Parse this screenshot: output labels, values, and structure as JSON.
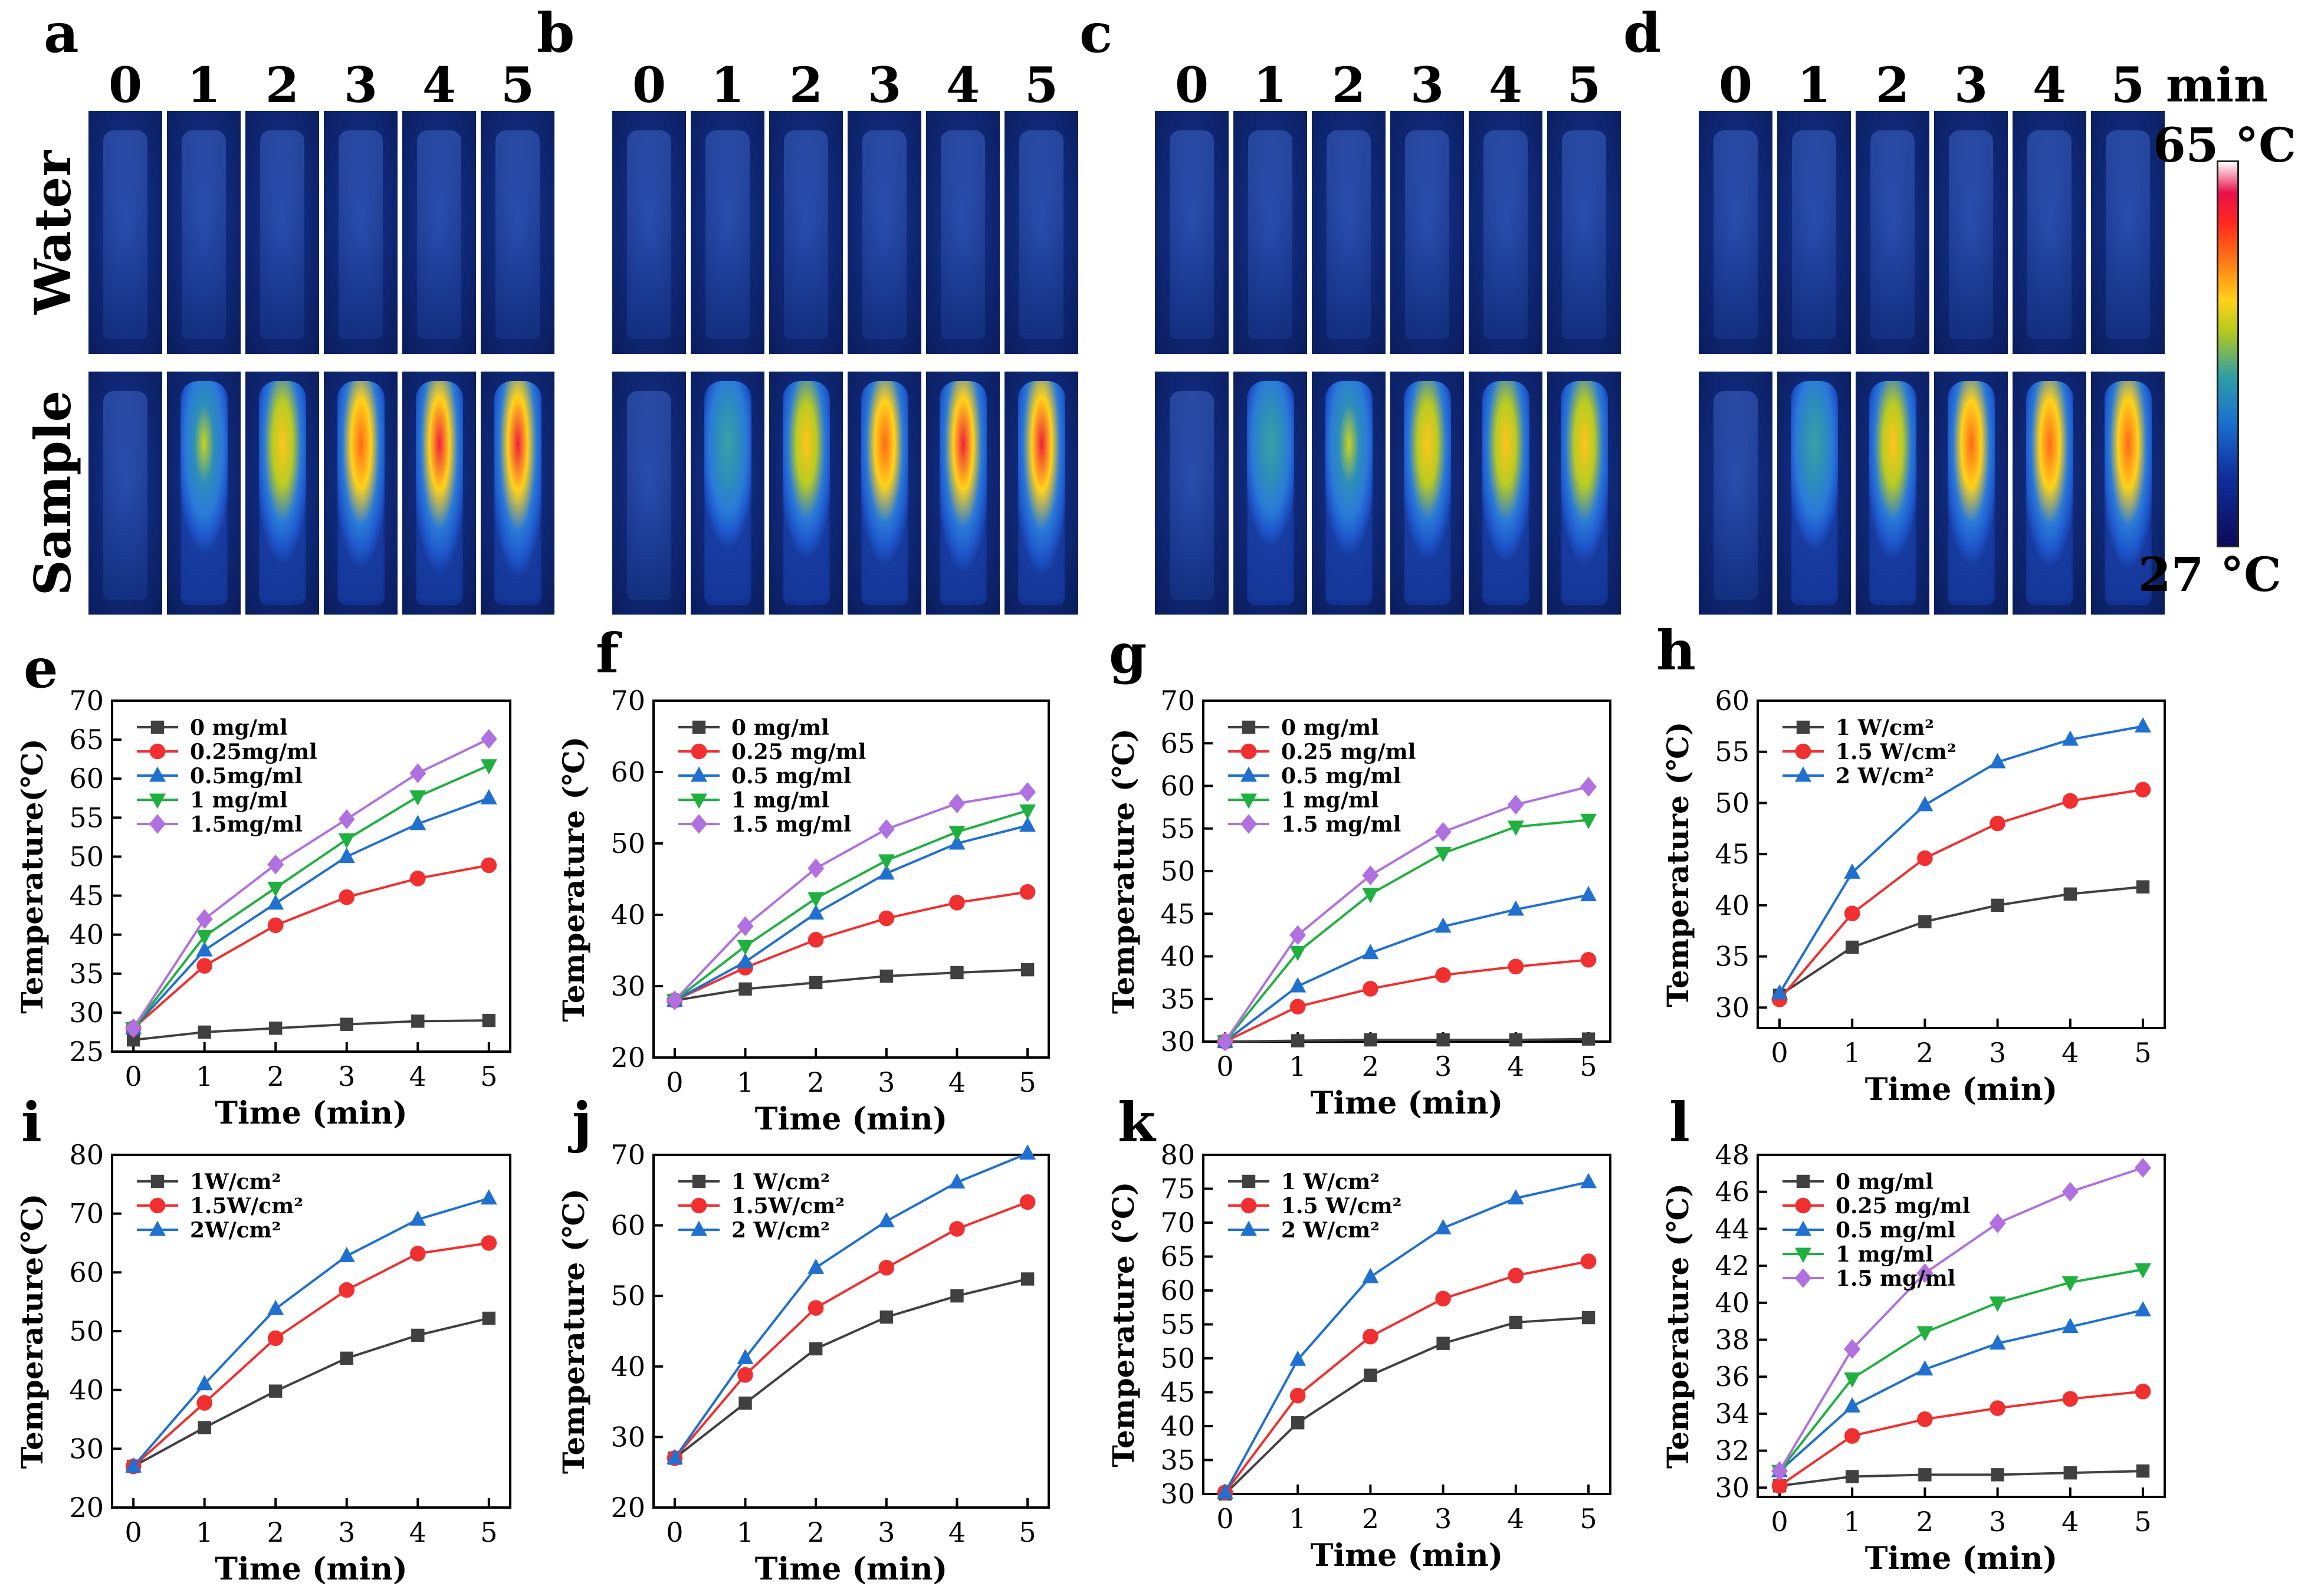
{
  "thermal": {
    "panels": [
      {
        "letter": "a",
        "times": [
          "0",
          "1",
          "2",
          "3",
          "4",
          "5"
        ],
        "sample_intensity": [
          0.0,
          0.45,
          0.68,
          0.8,
          0.92,
          1.0
        ]
      },
      {
        "letter": "b",
        "times": [
          "0",
          "1",
          "2",
          "3",
          "4",
          "5"
        ],
        "sample_intensity": [
          0.0,
          0.35,
          0.58,
          0.72,
          0.88,
          0.96
        ]
      },
      {
        "letter": "c",
        "times": [
          "0",
          "1",
          "2",
          "3",
          "4",
          "5"
        ],
        "sample_intensity": [
          0.0,
          0.3,
          0.5,
          0.6,
          0.66,
          0.7
        ]
      },
      {
        "letter": "d",
        "times": [
          "0",
          "1",
          "2",
          "3",
          "4",
          "5"
        ],
        "sample_intensity": [
          0.0,
          0.38,
          0.6,
          0.72,
          0.78,
          0.82
        ]
      }
    ],
    "row_labels": [
      "Water",
      "Sample"
    ],
    "unit": "min",
    "colorbar": {
      "max_label": "65 °C",
      "min_label": "27 °C"
    }
  },
  "chart_data": [
    {
      "id": "e",
      "type": "line",
      "xlabel": "Time (min)",
      "ylabel": "Temperature(℃)",
      "ylim": [
        25,
        70
      ],
      "yticks": [
        25,
        30,
        35,
        40,
        45,
        50,
        55,
        60,
        65,
        70
      ],
      "x": [
        0,
        1,
        2,
        3,
        4,
        5
      ],
      "series": [
        {
          "name": "0 mg/ml",
          "color": "#404040",
          "marker": "square",
          "values": [
            26.5,
            27.5,
            28.0,
            28.5,
            28.9,
            29.0
          ]
        },
        {
          "name": "0.25mg/ml",
          "color": "#f03030",
          "marker": "circle",
          "values": [
            28.0,
            36.0,
            41.2,
            44.8,
            47.2,
            48.9
          ]
        },
        {
          "name": "0.5mg/ml",
          "color": "#2070d0",
          "marker": "triangle",
          "values": [
            28.0,
            38.0,
            44.0,
            50.0,
            54.2,
            57.5
          ]
        },
        {
          "name": "1 mg/ml",
          "color": "#20b040",
          "marker": "triangle-down",
          "values": [
            28.0,
            39.8,
            46.0,
            52.2,
            57.7,
            61.7
          ]
        },
        {
          "name": "1.5mg/ml",
          "color": "#b070e0",
          "marker": "diamond",
          "values": [
            28.0,
            42.0,
            49.0,
            54.8,
            60.7,
            65.1
          ]
        }
      ]
    },
    {
      "id": "f",
      "type": "line",
      "xlabel": "Time (min)",
      "ylabel": "Temperature (℃)",
      "ylim": [
        20,
        70
      ],
      "yticks": [
        20,
        30,
        40,
        50,
        60,
        70
      ],
      "x": [
        0,
        1,
        2,
        3,
        4,
        5
      ],
      "series": [
        {
          "name": "0 mg/ml",
          "color": "#404040",
          "marker": "square",
          "values": [
            28.0,
            29.6,
            30.5,
            31.4,
            31.9,
            32.3
          ]
        },
        {
          "name": "0.25 mg/ml",
          "color": "#f03030",
          "marker": "circle",
          "values": [
            28.0,
            32.6,
            36.5,
            39.5,
            41.7,
            43.2
          ]
        },
        {
          "name": "0.5 mg/ml",
          "color": "#2070d0",
          "marker": "triangle",
          "values": [
            28.0,
            33.4,
            40.2,
            45.8,
            50.0,
            52.5
          ]
        },
        {
          "name": "1 mg/ml",
          "color": "#20b040",
          "marker": "triangle-down",
          "values": [
            28.0,
            35.6,
            42.3,
            47.6,
            51.6,
            54.6
          ]
        },
        {
          "name": "1.5 mg/ml",
          "color": "#b070e0",
          "marker": "diamond",
          "values": [
            28.0,
            38.4,
            46.5,
            52.0,
            55.6,
            57.2
          ]
        }
      ]
    },
    {
      "id": "g",
      "type": "line",
      "xlabel": "Time (min)",
      "ylabel": "Temperature (℃)",
      "ylim": [
        30,
        70
      ],
      "yticks": [
        30,
        35,
        40,
        45,
        50,
        55,
        60,
        65,
        70
      ],
      "x": [
        0,
        1,
        2,
        3,
        4,
        5
      ],
      "series": [
        {
          "name": "0 mg/ml",
          "color": "#404040",
          "marker": "square",
          "values": [
            30.0,
            30.1,
            30.2,
            30.2,
            30.2,
            30.3
          ]
        },
        {
          "name": "0.25 mg/ml",
          "color": "#f03030",
          "marker": "circle",
          "values": [
            30.0,
            34.1,
            36.2,
            37.8,
            38.8,
            39.6
          ]
        },
        {
          "name": "0.5 mg/ml",
          "color": "#2070d0",
          "marker": "triangle",
          "values": [
            30.0,
            36.5,
            40.4,
            43.5,
            45.5,
            47.2
          ]
        },
        {
          "name": "1 mg/ml",
          "color": "#20b040",
          "marker": "triangle-down",
          "values": [
            30.0,
            40.5,
            47.3,
            52.1,
            55.2,
            56.0
          ]
        },
        {
          "name": "1.5 mg/ml",
          "color": "#b070e0",
          "marker": "diamond",
          "values": [
            30.0,
            42.5,
            49.5,
            54.6,
            57.8,
            59.9
          ]
        }
      ]
    },
    {
      "id": "h",
      "type": "line",
      "xlabel": "Time (min)",
      "ylabel": "Temperature (℃)",
      "ylim": [
        28,
        60
      ],
      "yticks": [
        30,
        35,
        40,
        45,
        50,
        55,
        60
      ],
      "x": [
        0,
        1,
        2,
        3,
        4,
        5
      ],
      "series": [
        {
          "name": "1 W/cm²",
          "color": "#404040",
          "marker": "square",
          "values": [
            31.2,
            35.9,
            38.4,
            40.0,
            41.1,
            41.8
          ]
        },
        {
          "name": "1.5 W/cm²",
          "color": "#f03030",
          "marker": "circle",
          "values": [
            30.8,
            39.2,
            44.6,
            48.0,
            50.2,
            51.3
          ]
        },
        {
          "name": "2 W/cm²",
          "color": "#2070d0",
          "marker": "triangle",
          "values": [
            31.4,
            43.2,
            49.8,
            54.0,
            56.2,
            57.5
          ]
        }
      ]
    },
    {
      "id": "i",
      "type": "line",
      "xlabel": "Time (min)",
      "ylabel": "Temperature(℃)",
      "ylim": [
        20,
        80
      ],
      "yticks": [
        20,
        30,
        40,
        50,
        60,
        70,
        80
      ],
      "x": [
        0,
        1,
        2,
        3,
        4,
        5
      ],
      "series": [
        {
          "name": "1W/cm²",
          "color": "#404040",
          "marker": "square",
          "values": [
            27.0,
            33.6,
            39.8,
            45.4,
            49.3,
            52.2
          ]
        },
        {
          "name": "1.5W/cm²",
          "color": "#f03030",
          "marker": "circle",
          "values": [
            27.0,
            37.8,
            48.8,
            57.0,
            63.2,
            65.0
          ]
        },
        {
          "name": "2W/cm²",
          "color": "#2070d0",
          "marker": "triangle",
          "values": [
            27.0,
            41.0,
            53.8,
            62.8,
            69.0,
            72.6
          ]
        }
      ]
    },
    {
      "id": "j",
      "type": "line",
      "xlabel": "Time (min)",
      "ylabel": "Temperature (℃)",
      "ylim": [
        20,
        70
      ],
      "yticks": [
        20,
        30,
        40,
        50,
        60,
        70
      ],
      "x": [
        0,
        1,
        2,
        3,
        4,
        5
      ],
      "series": [
        {
          "name": "1  W/cm²",
          "color": "#404040",
          "marker": "square",
          "values": [
            27.0,
            34.8,
            42.5,
            47.0,
            50.0,
            52.4
          ]
        },
        {
          "name": "1.5W/cm²",
          "color": "#f03030",
          "marker": "circle",
          "values": [
            27.0,
            38.8,
            48.3,
            54.0,
            59.5,
            63.3
          ]
        },
        {
          "name": "2   W/cm²",
          "color": "#2070d0",
          "marker": "triangle",
          "values": [
            27.0,
            41.2,
            54.0,
            60.6,
            66.1,
            70.2
          ]
        }
      ]
    },
    {
      "id": "k",
      "type": "line",
      "xlabel": "Time (min)",
      "ylabel": "Temperature (℃)",
      "ylim": [
        30,
        80
      ],
      "yticks": [
        30,
        35,
        40,
        45,
        50,
        55,
        60,
        65,
        70,
        75,
        80
      ],
      "x": [
        0,
        1,
        2,
        3,
        4,
        5
      ],
      "series": [
        {
          "name": "1 W/cm²",
          "color": "#404040",
          "marker": "square",
          "values": [
            30.0,
            40.5,
            47.5,
            52.2,
            55.3,
            56.0
          ]
        },
        {
          "name": "1.5 W/cm²",
          "color": "#f03030",
          "marker": "circle",
          "values": [
            30.2,
            44.5,
            53.2,
            58.8,
            62.2,
            64.3
          ]
        },
        {
          "name": "2 W/cm²",
          "color": "#2070d0",
          "marker": "triangle",
          "values": [
            30.2,
            49.8,
            62.0,
            69.2,
            73.6,
            76.0
          ]
        }
      ]
    },
    {
      "id": "l",
      "type": "line",
      "xlabel": "Time (min)",
      "ylabel": "Temperature (℃)",
      "ylim": [
        29.5,
        48
      ],
      "yticks": [
        30,
        32,
        34,
        36,
        38,
        40,
        42,
        44,
        46,
        48
      ],
      "x": [
        0,
        1,
        2,
        3,
        4,
        5
      ],
      "series": [
        {
          "name": "0 mg/ml",
          "color": "#404040",
          "marker": "square",
          "values": [
            30.1,
            30.6,
            30.7,
            30.7,
            30.8,
            30.9
          ]
        },
        {
          "name": "0.25 mg/ml",
          "color": "#f03030",
          "marker": "circle",
          "values": [
            30.1,
            32.8,
            33.7,
            34.3,
            34.8,
            35.2
          ]
        },
        {
          "name": "0.5 mg/ml",
          "color": "#2070d0",
          "marker": "triangle",
          "values": [
            30.9,
            34.4,
            36.4,
            37.8,
            38.7,
            39.6
          ]
        },
        {
          "name": "1 mg/ml",
          "color": "#20b040",
          "marker": "triangle-down",
          "values": [
            30.9,
            35.9,
            38.4,
            40.0,
            41.1,
            41.8
          ]
        },
        {
          "name": "1.5 mg/ml",
          "color": "#b070e0",
          "marker": "diamond",
          "values": [
            30.9,
            37.5,
            41.6,
            44.3,
            46.0,
            47.3
          ]
        }
      ]
    }
  ]
}
